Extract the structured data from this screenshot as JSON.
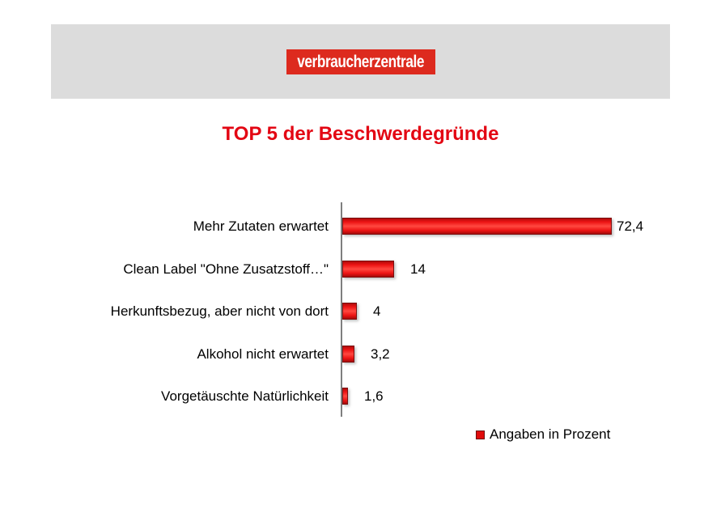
{
  "header": {
    "logo_text": "verbraucherzentrale",
    "band_color": "#dcdcdc",
    "logo_bg_color": "#dd2a1e",
    "logo_text_color": "#ffffff"
  },
  "title": {
    "text": "TOP 5 der Beschwerdegründe",
    "color": "#e30613"
  },
  "chart_data": {
    "type": "bar",
    "orientation": "horizontal",
    "title": "TOP 5 der Beschwerdegründe",
    "categories": [
      "Mehr Zutaten erwartet",
      "Clean Label \"Ohne Zusatzstoff…\"",
      "Herkunftsbezug, aber nicht von dort",
      "Alkohol nicht erwartet",
      "Vorgetäuschte Natürlichkeit"
    ],
    "values": [
      72.4,
      14,
      4,
      3.2,
      1.6
    ],
    "value_labels": [
      "72,4",
      "14",
      "4",
      "3,2",
      "1,6"
    ],
    "series_name": "Angaben in Prozent",
    "xlabel": "",
    "ylabel": "",
    "xlim": [
      0,
      80
    ],
    "grid": false,
    "legend_position": "bottom-right",
    "bar_color": "#ee1111",
    "axis_color": "#7f7f7f",
    "value_unit": "percent"
  },
  "legend": {
    "label": "Angaben in Prozent",
    "marker_color": "#e00b0b"
  }
}
